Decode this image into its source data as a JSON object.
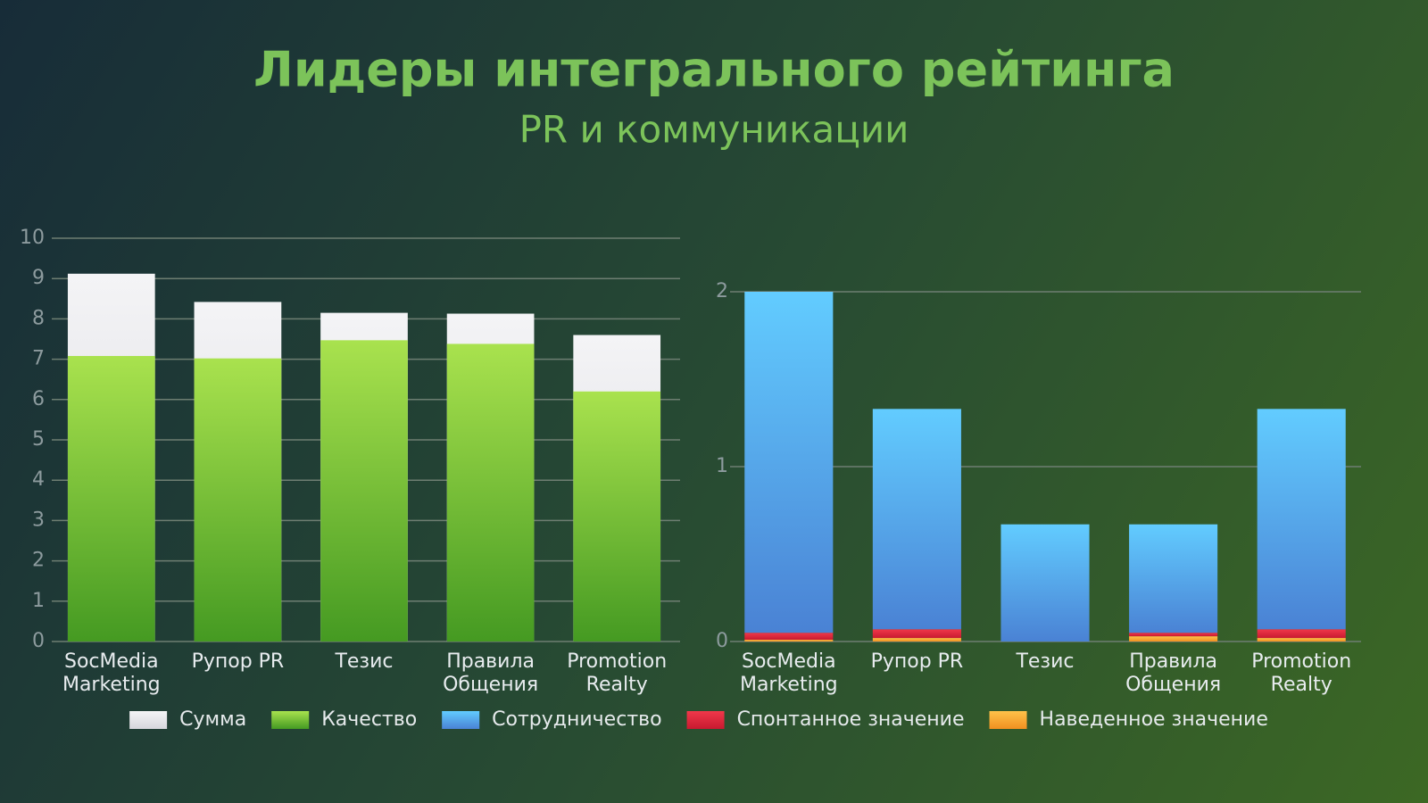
{
  "header": {
    "title": "Лидеры интегрального рейтинга",
    "subtitle": "PR и коммуникации"
  },
  "chart_data": [
    {
      "type": "bar",
      "stacked": false,
      "grid": true,
      "categories": [
        "SocMedia Marketing",
        "Рупор PR",
        "Тезис",
        "Правила Общения",
        "Promotion Realty"
      ],
      "ylim": [
        0,
        10
      ],
      "yticks": [
        0,
        1,
        2,
        3,
        4,
        5,
        6,
        7,
        8,
        9,
        10
      ],
      "series": [
        {
          "name": "Сумма",
          "color": "#e6e6ea",
          "gradient": [
            "#f4f4f6",
            "#d6d6dc"
          ],
          "values": [
            9.12,
            8.42,
            8.15,
            8.13,
            7.6
          ]
        },
        {
          "name": "Качество",
          "color": "#7cc43a",
          "gradient": [
            "#a9e24e",
            "#459a22"
          ],
          "values": [
            7.08,
            7.02,
            7.47,
            7.38,
            6.2
          ]
        }
      ]
    },
    {
      "type": "bar",
      "stacked": true,
      "grid": true,
      "categories": [
        "SocMedia Marketing",
        "Рупор PR",
        "Тезис",
        "Правила Общения",
        "Promotion Realty"
      ],
      "ylim": [
        0,
        2
      ],
      "yticks": [
        0,
        1,
        2
      ],
      "series": [
        {
          "name": "Сотрудничество",
          "color": "#55a8ee",
          "gradient": [
            "#62ccff",
            "#4a82d4"
          ],
          "values": [
            1.95,
            1.26,
            0.67,
            0.62,
            1.26
          ]
        },
        {
          "name": "Спонтанное значение",
          "color": "#e0283c",
          "gradient": [
            "#f0384a",
            "#c81a30"
          ],
          "values": [
            0.04,
            0.05,
            0,
            0.02,
            0.05
          ]
        },
        {
          "name": "Наведенное значение",
          "color": "#f4a630",
          "gradient": [
            "#ffc24a",
            "#f09020"
          ],
          "values": [
            0.01,
            0.02,
            0,
            0.03,
            0.02
          ]
        }
      ]
    }
  ]
}
